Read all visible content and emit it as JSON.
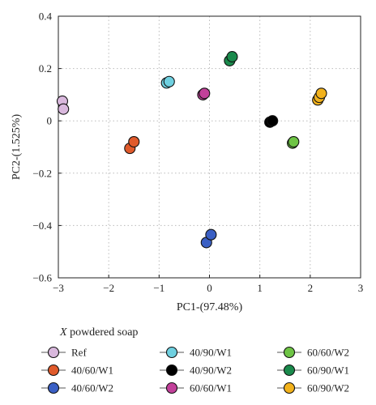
{
  "chart_data": {
    "type": "scatter",
    "xlabel": "PC1-(97.48%)",
    "ylabel": "PC2-(1.525%)",
    "xlim": [
      -3,
      3
    ],
    "ylim": [
      -0.6,
      0.4
    ],
    "xticks": [
      "−3",
      "−2",
      "−1",
      "0",
      "1",
      "2",
      "3"
    ],
    "yticks": [
      "0.4",
      "0.2",
      "0",
      "−0.2",
      "−0.4",
      "−0.6"
    ],
    "grid": "dotted",
    "legend_title_italic": "X",
    "legend_title_rest": " powdered soap",
    "legend_placement": "bottom",
    "series": [
      {
        "name": "Ref",
        "color": "#d9b8dd",
        "points": [
          [
            -2.92,
            0.075
          ],
          [
            -2.9,
            0.045
          ]
        ]
      },
      {
        "name": "40/60/W1",
        "color": "#e05a2b",
        "points": [
          [
            -1.58,
            -0.105
          ],
          [
            -1.5,
            -0.08
          ]
        ]
      },
      {
        "name": "40/60/W2",
        "color": "#3a5fc4",
        "points": [
          [
            -0.06,
            -0.465
          ],
          [
            0.03,
            -0.435
          ]
        ]
      },
      {
        "name": "40/90/W1",
        "color": "#6fd0e0",
        "points": [
          [
            -0.85,
            0.145
          ],
          [
            -0.8,
            0.15
          ]
        ]
      },
      {
        "name": "40/90/W2",
        "color": "#000000",
        "points": [
          [
            1.2,
            -0.005
          ],
          [
            1.25,
            0.0
          ]
        ]
      },
      {
        "name": "60/60/W1",
        "color": "#c2409a",
        "points": [
          [
            -0.13,
            0.1
          ],
          [
            -0.1,
            0.105
          ]
        ]
      },
      {
        "name": "60/60/W2",
        "color": "#6ec445",
        "points": [
          [
            1.65,
            -0.085
          ],
          [
            1.67,
            -0.08
          ]
        ]
      },
      {
        "name": "60/90/W1",
        "color": "#1a8a4c",
        "points": [
          [
            0.4,
            0.23
          ],
          [
            0.45,
            0.245
          ]
        ]
      },
      {
        "name": "60/90/W2",
        "color": "#f2b21c",
        "points": [
          [
            2.15,
            0.08
          ],
          [
            2.18,
            0.09
          ],
          [
            2.22,
            0.105
          ]
        ]
      }
    ]
  }
}
